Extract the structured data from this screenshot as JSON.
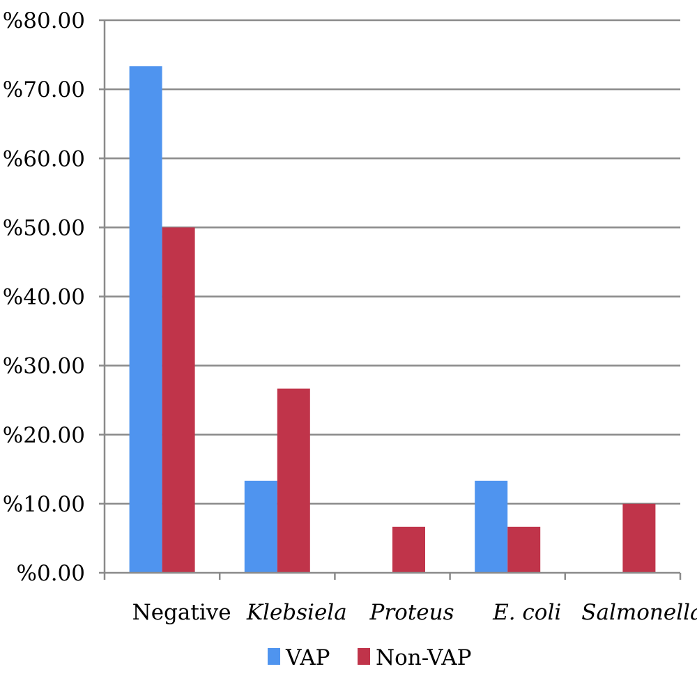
{
  "chart_data": {
    "type": "bar",
    "title": "",
    "xlabel": "",
    "ylabel": "",
    "categories": [
      "Negative",
      "Klebsiela",
      "Proteus",
      "E. coli",
      "Salmonella"
    ],
    "italic_categories": [
      false,
      true,
      true,
      true,
      true
    ],
    "series": [
      {
        "name": "VAP",
        "color": "#4f94ef",
        "values": [
          73.33,
          13.33,
          0,
          13.33,
          0
        ]
      },
      {
        "name": "Non-VAP",
        "color": "#c0344a",
        "values": [
          50.0,
          26.67,
          6.67,
          6.67,
          10.0
        ]
      }
    ],
    "ylim": [
      0,
      80
    ],
    "yticks": [
      0,
      10,
      20,
      30,
      40,
      50,
      60,
      70,
      80
    ],
    "ytick_labels": [
      "%0.00",
      "%10.00",
      "%20.00",
      "%30.00",
      "%40.00",
      "%50.00",
      "%60.00",
      "%70.00",
      "%80.00"
    ],
    "grid": true,
    "legend_position": "bottom"
  }
}
